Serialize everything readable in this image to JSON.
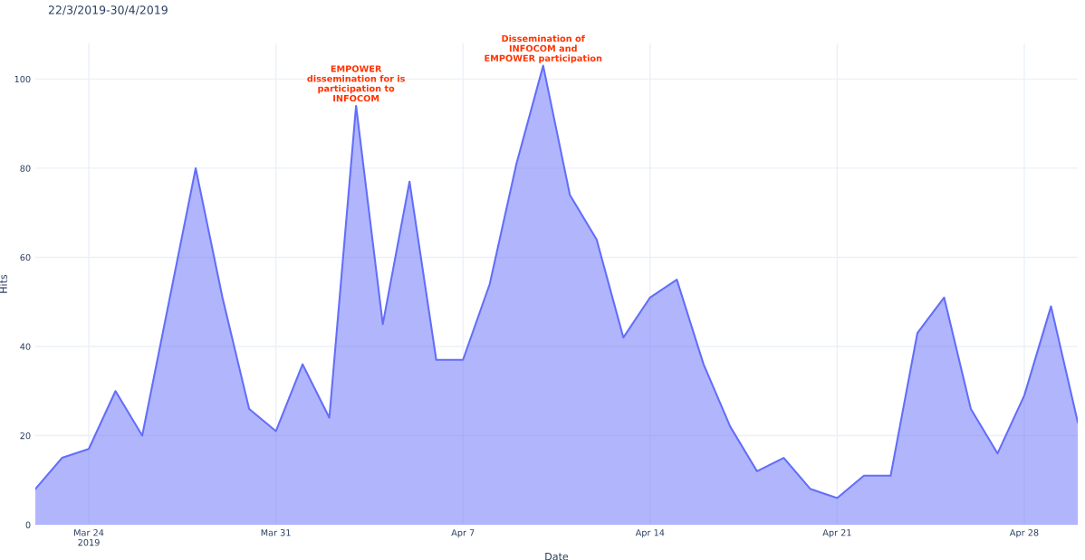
{
  "chart_data": {
    "type": "area",
    "title": "22/3/2019-30/4/2019",
    "xlabel": "Date",
    "ylabel": "Hits",
    "x": [
      "2019-03-22",
      "2019-03-23",
      "2019-03-24",
      "2019-03-25",
      "2019-03-26",
      "2019-03-27",
      "2019-03-28",
      "2019-03-29",
      "2019-03-30",
      "2019-03-31",
      "2019-04-01",
      "2019-04-02",
      "2019-04-03",
      "2019-04-04",
      "2019-04-05",
      "2019-04-06",
      "2019-04-07",
      "2019-04-08",
      "2019-04-09",
      "2019-04-10",
      "2019-04-11",
      "2019-04-12",
      "2019-04-13",
      "2019-04-14",
      "2019-04-15",
      "2019-04-16",
      "2019-04-17",
      "2019-04-18",
      "2019-04-19",
      "2019-04-20",
      "2019-04-21",
      "2019-04-22",
      "2019-04-23",
      "2019-04-24",
      "2019-04-25",
      "2019-04-26",
      "2019-04-27",
      "2019-04-28",
      "2019-04-29",
      "2019-04-30"
    ],
    "series": [
      {
        "color": "#636efa",
        "values": [
          8,
          15,
          17,
          30,
          20,
          50,
          80,
          51,
          26,
          21,
          36,
          24,
          94,
          45,
          77,
          37,
          37,
          54,
          81,
          103,
          74,
          64,
          42,
          51,
          55,
          36,
          22,
          12,
          15,
          8,
          6,
          11,
          11,
          43,
          51,
          26,
          16,
          29,
          49,
          23
        ]
      }
    ],
    "xlim": [
      "2019-03-22",
      "2019-04-30"
    ],
    "xticks": [
      {
        "value": "2019-03-24",
        "label": "Mar 24\n2019"
      },
      {
        "value": "2019-03-31",
        "label": "Mar 31"
      },
      {
        "value": "2019-04-07",
        "label": "Apr 7"
      },
      {
        "value": "2019-04-14",
        "label": "Apr 14"
      },
      {
        "value": "2019-04-21",
        "label": "Apr 21"
      },
      {
        "value": "2019-04-28",
        "label": "Apr 28"
      }
    ],
    "ylim": [
      0,
      108
    ],
    "yticks": [
      0,
      20,
      40,
      60,
      80,
      100
    ],
    "grid": true,
    "annotations": [
      {
        "text": "EMPOWER\ndissemination for is\nparticipation to\nINFOCOM",
        "x": "2019-04-03",
        "y": 94
      },
      {
        "text": "Dissemination of\nINFOCOM and\nEMPOWER participation",
        "x": "2019-04-10",
        "y": 103
      }
    ]
  }
}
